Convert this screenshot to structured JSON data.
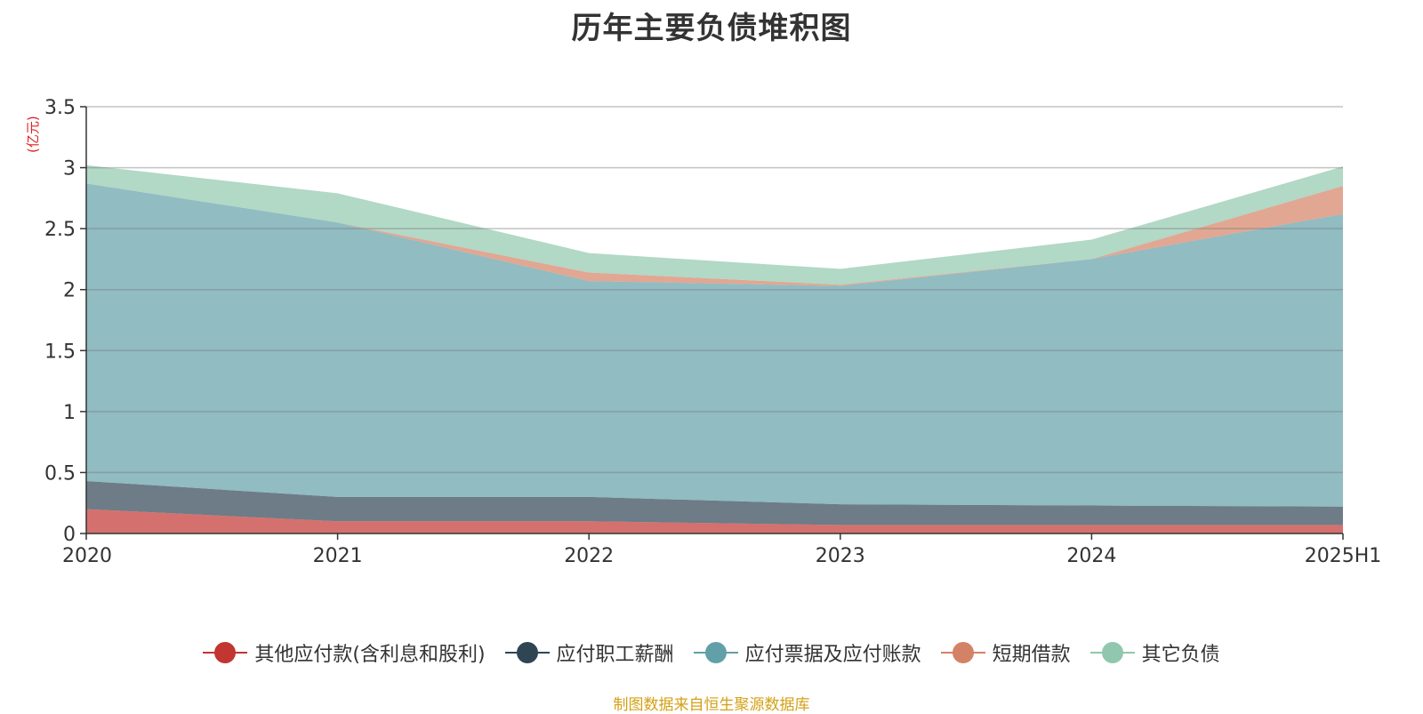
{
  "chart_data": {
    "type": "area",
    "stacked": true,
    "title": "历年主要负债堆积图",
    "ylabel": "(亿元)",
    "x": [
      "2020",
      "2021",
      "2022",
      "2023",
      "2024",
      "2025H1"
    ],
    "ylim": [
      0,
      3.5
    ],
    "yticks": [
      "0",
      "0.5",
      "1",
      "1.5",
      "2",
      "2.5",
      "3",
      "3.5"
    ],
    "grid": true,
    "legend_position": "bottom",
    "series": [
      {
        "name": "其他应付款(含利息和股利)",
        "color": "#c23531",
        "values": [
          0.2,
          0.1,
          0.1,
          0.07,
          0.07,
          0.07
        ]
      },
      {
        "name": "应付职工薪酬",
        "color": "#2f4554",
        "values": [
          0.23,
          0.2,
          0.2,
          0.17,
          0.16,
          0.15
        ]
      },
      {
        "name": "应付票据及应付账款",
        "color": "#61a0a8",
        "values": [
          2.44,
          2.25,
          1.77,
          1.79,
          2.02,
          2.4
        ]
      },
      {
        "name": "短期借款",
        "color": "#d48265",
        "values": [
          0,
          0,
          0.07,
          0.01,
          0,
          0.23
        ]
      },
      {
        "name": "其它负债",
        "color": "#91c7ae",
        "values": [
          0.15,
          0.24,
          0.16,
          0.13,
          0.16,
          0.16
        ]
      }
    ]
  },
  "source_note": "制图数据来自恒生聚源数据库"
}
